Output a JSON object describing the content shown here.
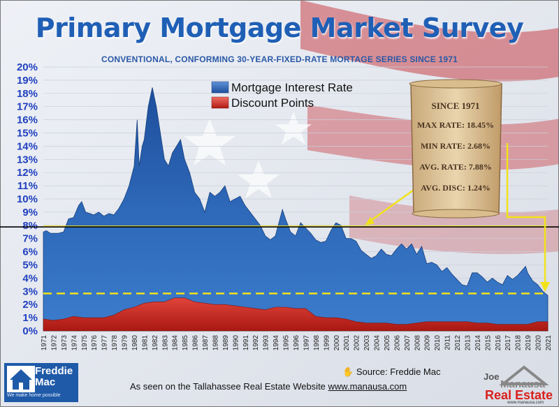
{
  "header": {
    "title": "Primary Mortgage Market Survey",
    "subtitle": "CONVENTIONAL, CONFORMING 30-YEAR-FIXED-RATE MORTAGE SERIES SINCE 1971"
  },
  "scroll": {
    "line1": "SINCE 1971",
    "line2": "MAX RATE: 18.45%",
    "line3": "MIN RATE:   2.68%",
    "line4": "AVG. RATE:  7.88%",
    "line5": "AVG. DISC:  1.24%"
  },
  "footer": {
    "source": "Source: Freddie Mac",
    "seen_prefix": "As seen on the Tallahassee Real Estate Website ",
    "seen_link": "www.manausa.com"
  },
  "logos": {
    "freddie_line1": "Freddie",
    "freddie_line2": "Mac",
    "freddie_tagline": "We make home possible",
    "jm_joe": "Joe",
    "jm_manausa": "Manausa",
    "jm_real_estate": "Real Estate",
    "jm_url": "www.manausa.com"
  },
  "colors": {
    "rate_fill": "#2b63b3",
    "disc_fill": "#d12a22",
    "title": "#1f5fb5",
    "avg_line": "#000000",
    "dashed_line": "#f2e21a",
    "arrow": "#f2e21a",
    "axis_labels": "#1f3fbf"
  },
  "chart_data": {
    "type": "area",
    "title": "Primary Mortgage Market Survey",
    "subtitle": "CONVENTIONAL, CONFORMING 30-YEAR-FIXED-RATE MORTAGE SERIES SINCE 1971",
    "xlabel": "",
    "ylabel": "",
    "ylim": [
      0,
      20
    ],
    "yticks": [
      "0%",
      "1%",
      "2%",
      "3%",
      "4%",
      "5%",
      "6%",
      "7%",
      "8%",
      "9%",
      "10%",
      "11%",
      "12%",
      "13%",
      "14%",
      "15%",
      "16%",
      "17%",
      "18%",
      "19%",
      "20%"
    ],
    "x": [
      1971,
      1972,
      1973,
      1974,
      1975,
      1976,
      1977,
      1978,
      1979,
      1980,
      1981,
      1982,
      1983,
      1984,
      1985,
      1986,
      1987,
      1988,
      1989,
      1990,
      1991,
      1992,
      1993,
      1994,
      1995,
      1996,
      1997,
      1998,
      1999,
      2000,
      2001,
      2002,
      2003,
      2004,
      2005,
      2006,
      2007,
      2008,
      2009,
      2010,
      2011,
      2012,
      2013,
      2014,
      2015,
      2016,
      2017,
      2018,
      2019,
      2020,
      2021
    ],
    "legend": "top-center",
    "grid": true,
    "series": [
      {
        "name": "Mortgage Interest Rate",
        "points": [
          [
            1971.0,
            7.5
          ],
          [
            1971.3,
            7.6
          ],
          [
            1971.7,
            7.4
          ],
          [
            1972.0,
            7.4
          ],
          [
            1972.5,
            7.4
          ],
          [
            1973.0,
            7.5
          ],
          [
            1973.5,
            8.5
          ],
          [
            1974.0,
            8.6
          ],
          [
            1974.5,
            9.5
          ],
          [
            1974.8,
            9.8
          ],
          [
            1975.2,
            9.0
          ],
          [
            1975.6,
            8.9
          ],
          [
            1976.0,
            8.8
          ],
          [
            1976.5,
            9.0
          ],
          [
            1977.0,
            8.7
          ],
          [
            1977.5,
            8.9
          ],
          [
            1978.0,
            8.8
          ],
          [
            1978.5,
            9.3
          ],
          [
            1979.0,
            10.0
          ],
          [
            1979.5,
            11.0
          ],
          [
            1980.0,
            12.5
          ],
          [
            1980.3,
            16.0
          ],
          [
            1980.5,
            12.5
          ],
          [
            1980.8,
            14.0
          ],
          [
            1981.0,
            14.5
          ],
          [
            1981.4,
            17.0
          ],
          [
            1981.8,
            18.45
          ],
          [
            1982.2,
            17.0
          ],
          [
            1982.6,
            15.0
          ],
          [
            1983.0,
            13.0
          ],
          [
            1983.4,
            12.5
          ],
          [
            1983.8,
            13.5
          ],
          [
            1984.2,
            14.0
          ],
          [
            1984.6,
            14.5
          ],
          [
            1985.0,
            13.0
          ],
          [
            1985.5,
            12.0
          ],
          [
            1986.0,
            10.5
          ],
          [
            1986.5,
            10.0
          ],
          [
            1987.0,
            9.0
          ],
          [
            1987.5,
            10.5
          ],
          [
            1988.0,
            10.2
          ],
          [
            1988.5,
            10.5
          ],
          [
            1989.0,
            11.0
          ],
          [
            1989.5,
            9.8
          ],
          [
            1990.0,
            10.0
          ],
          [
            1990.5,
            10.2
          ],
          [
            1991.0,
            9.5
          ],
          [
            1991.5,
            9.0
          ],
          [
            1992.0,
            8.5
          ],
          [
            1992.5,
            8.0
          ],
          [
            1993.0,
            7.2
          ],
          [
            1993.5,
            6.9
          ],
          [
            1994.0,
            7.2
          ],
          [
            1994.7,
            9.2
          ],
          [
            1995.0,
            8.5
          ],
          [
            1995.5,
            7.5
          ],
          [
            1996.0,
            7.2
          ],
          [
            1996.5,
            8.2
          ],
          [
            1997.0,
            7.8
          ],
          [
            1997.5,
            7.4
          ],
          [
            1998.0,
            6.9
          ],
          [
            1998.5,
            6.7
          ],
          [
            1999.0,
            6.8
          ],
          [
            1999.5,
            7.6
          ],
          [
            2000.0,
            8.2
          ],
          [
            2000.5,
            8.0
          ],
          [
            2001.0,
            7.0
          ],
          [
            2001.5,
            7.0
          ],
          [
            2002.0,
            6.8
          ],
          [
            2002.5,
            6.1
          ],
          [
            2003.0,
            5.8
          ],
          [
            2003.5,
            5.5
          ],
          [
            2004.0,
            5.7
          ],
          [
            2004.5,
            6.2
          ],
          [
            2005.0,
            5.8
          ],
          [
            2005.5,
            5.7
          ],
          [
            2006.0,
            6.2
          ],
          [
            2006.5,
            6.6
          ],
          [
            2007.0,
            6.2
          ],
          [
            2007.5,
            6.6
          ],
          [
            2008.0,
            5.8
          ],
          [
            2008.5,
            6.4
          ],
          [
            2009.0,
            5.1
          ],
          [
            2009.5,
            5.2
          ],
          [
            2010.0,
            5.0
          ],
          [
            2010.5,
            4.5
          ],
          [
            2011.0,
            4.8
          ],
          [
            2011.5,
            4.3
          ],
          [
            2012.0,
            3.9
          ],
          [
            2012.5,
            3.5
          ],
          [
            2013.0,
            3.4
          ],
          [
            2013.5,
            4.4
          ],
          [
            2014.0,
            4.4
          ],
          [
            2014.5,
            4.1
          ],
          [
            2015.0,
            3.7
          ],
          [
            2015.5,
            4.0
          ],
          [
            2016.0,
            3.7
          ],
          [
            2016.5,
            3.5
          ],
          [
            2017.0,
            4.2
          ],
          [
            2017.5,
            3.9
          ],
          [
            2018.0,
            4.2
          ],
          [
            2018.8,
            4.9
          ],
          [
            2019.0,
            4.4
          ],
          [
            2019.5,
            3.8
          ],
          [
            2020.0,
            3.5
          ],
          [
            2020.5,
            3.0
          ],
          [
            2021.0,
            2.68
          ]
        ]
      },
      {
        "name": "Discount Points",
        "points": [
          [
            1971.0,
            0.9
          ],
          [
            1972.0,
            0.8
          ],
          [
            1973.0,
            0.9
          ],
          [
            1974.0,
            1.1
          ],
          [
            1975.0,
            1.0
          ],
          [
            1976.0,
            1.0
          ],
          [
            1977.0,
            1.0
          ],
          [
            1978.0,
            1.2
          ],
          [
            1979.0,
            1.6
          ],
          [
            1980.0,
            1.8
          ],
          [
            1981.0,
            2.1
          ],
          [
            1982.0,
            2.2
          ],
          [
            1983.0,
            2.2
          ],
          [
            1984.0,
            2.5
          ],
          [
            1985.0,
            2.5
          ],
          [
            1986.0,
            2.2
          ],
          [
            1987.0,
            2.1
          ],
          [
            1988.0,
            2.0
          ],
          [
            1989.0,
            2.0
          ],
          [
            1990.0,
            1.9
          ],
          [
            1991.0,
            1.8
          ],
          [
            1992.0,
            1.7
          ],
          [
            1993.0,
            1.6
          ],
          [
            1994.0,
            1.8
          ],
          [
            1995.0,
            1.8
          ],
          [
            1996.0,
            1.7
          ],
          [
            1997.0,
            1.7
          ],
          [
            1998.0,
            1.1
          ],
          [
            1999.0,
            1.0
          ],
          [
            2000.0,
            1.0
          ],
          [
            2001.0,
            0.9
          ],
          [
            2002.0,
            0.7
          ],
          [
            2003.0,
            0.6
          ],
          [
            2004.0,
            0.6
          ],
          [
            2005.0,
            0.6
          ],
          [
            2006.0,
            0.5
          ],
          [
            2007.0,
            0.5
          ],
          [
            2008.0,
            0.6
          ],
          [
            2009.0,
            0.7
          ],
          [
            2010.0,
            0.7
          ],
          [
            2011.0,
            0.7
          ],
          [
            2012.0,
            0.7
          ],
          [
            2013.0,
            0.7
          ],
          [
            2014.0,
            0.6
          ],
          [
            2015.0,
            0.6
          ],
          [
            2016.0,
            0.5
          ],
          [
            2017.0,
            0.5
          ],
          [
            2018.0,
            0.5
          ],
          [
            2019.0,
            0.5
          ],
          [
            2020.0,
            0.7
          ],
          [
            2021.0,
            0.7
          ]
        ]
      }
    ],
    "reference_lines": [
      {
        "y": 7.88,
        "style": "solid"
      },
      {
        "y": 2.68,
        "style": "dashed"
      }
    ]
  }
}
